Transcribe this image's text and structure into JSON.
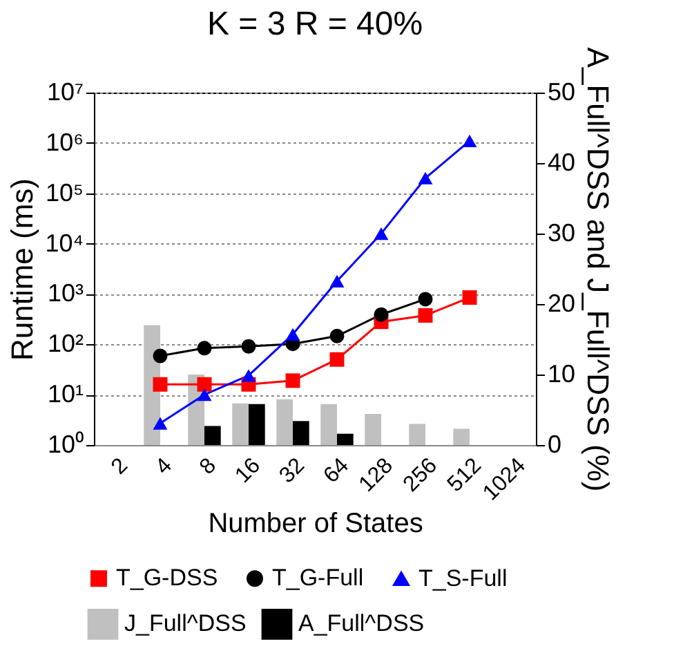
{
  "chart_data": {
    "type": "line",
    "title": "K = 3   R = 40%",
    "xlabel": "Number of States",
    "ylabel": "Runtime (ms)",
    "y2label": "A_Full^DSS and J_Full^DSS (%)",
    "categories": [
      "2",
      "4",
      "8",
      "16",
      "32",
      "64",
      "128",
      "256",
      "512",
      "1024"
    ],
    "series": [
      {
        "name": "T_G-DSS",
        "color": "#ff0000",
        "marker": "square",
        "values": [
          null,
          16,
          16,
          16,
          19,
          50,
          280,
          375,
          850,
          null
        ]
      },
      {
        "name": "T_G-Full",
        "color": "#000000",
        "marker": "circle",
        "values": [
          null,
          59,
          84,
          91,
          102,
          146,
          390,
          790,
          null,
          null
        ]
      },
      {
        "name": "T_S-Full",
        "color": "#0000ff",
        "marker": "triangle",
        "values": [
          null,
          2.7,
          10,
          24,
          158,
          1800,
          15800,
          200000,
          1100000,
          null
        ]
      },
      {
        "name": "J_Full^DSS",
        "type": "bar",
        "axis": "y2",
        "color": "#c0c0c0",
        "values": [
          null,
          17,
          10,
          5.9,
          6.5,
          5.8,
          4.4,
          3.0,
          2.3,
          null
        ]
      },
      {
        "name": "A_Full^DSS",
        "type": "bar",
        "axis": "y2",
        "color": "#000000",
        "values": [
          null,
          null,
          2.7,
          5.8,
          3.4,
          1.6,
          null,
          null,
          null,
          null
        ]
      }
    ],
    "log": "y",
    "ylim": [
      1,
      10000000
    ],
    "yticks": [
      {
        "value": 1,
        "label": "10⁰"
      },
      {
        "value": 10,
        "label": "10¹"
      },
      {
        "value": 100,
        "label": "10²"
      },
      {
        "value": 1000,
        "label": "10³"
      },
      {
        "value": 10000,
        "label": "10⁴"
      },
      {
        "value": 100000,
        "label": "10⁵"
      },
      {
        "value": 1000000,
        "label": "10⁶"
      },
      {
        "value": 10000000,
        "label": "10⁷"
      }
    ],
    "y2lim": [
      0,
      50
    ],
    "y2ticks": [
      0,
      10,
      20,
      30,
      40,
      50
    ],
    "grid": "y",
    "legend": "bottom"
  }
}
